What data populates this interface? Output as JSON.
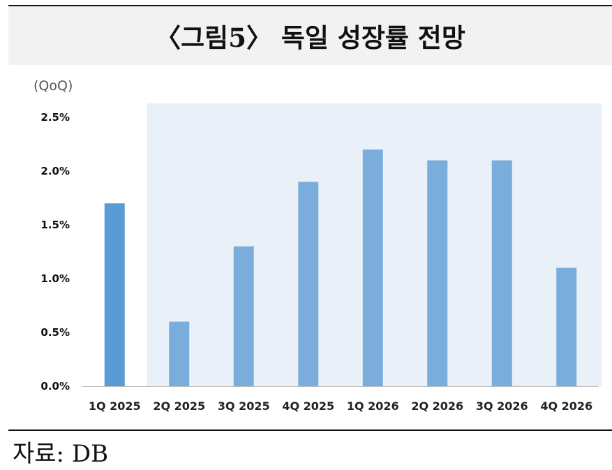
{
  "header": {
    "title": "〈그림5〉 독일 성장률 전망"
  },
  "chart_data": {
    "type": "bar",
    "unit_label": "(QoQ)",
    "categories": [
      "1Q 2025",
      "2Q 2025",
      "3Q 2025",
      "4Q 2025",
      "1Q 2026",
      "2Q 2026",
      "3Q 2026",
      "4Q 2026"
    ],
    "values": [
      1.7,
      0.6,
      1.3,
      1.9,
      2.2,
      2.1,
      2.1,
      1.1
    ],
    "value_unit": "%",
    "ylim": [
      0,
      2.5
    ],
    "yticks": [
      "0.0%",
      "0.5%",
      "1.0%",
      "1.5%",
      "2.0%",
      "2.5%"
    ],
    "forecast_shaded_from": "2Q 2025",
    "grid": false,
    "colors": {
      "actual": "#5b9bd5",
      "forecast": "#7aacdc",
      "shade": "#eaf0f8"
    }
  },
  "footer": {
    "source": "자료: DB"
  }
}
